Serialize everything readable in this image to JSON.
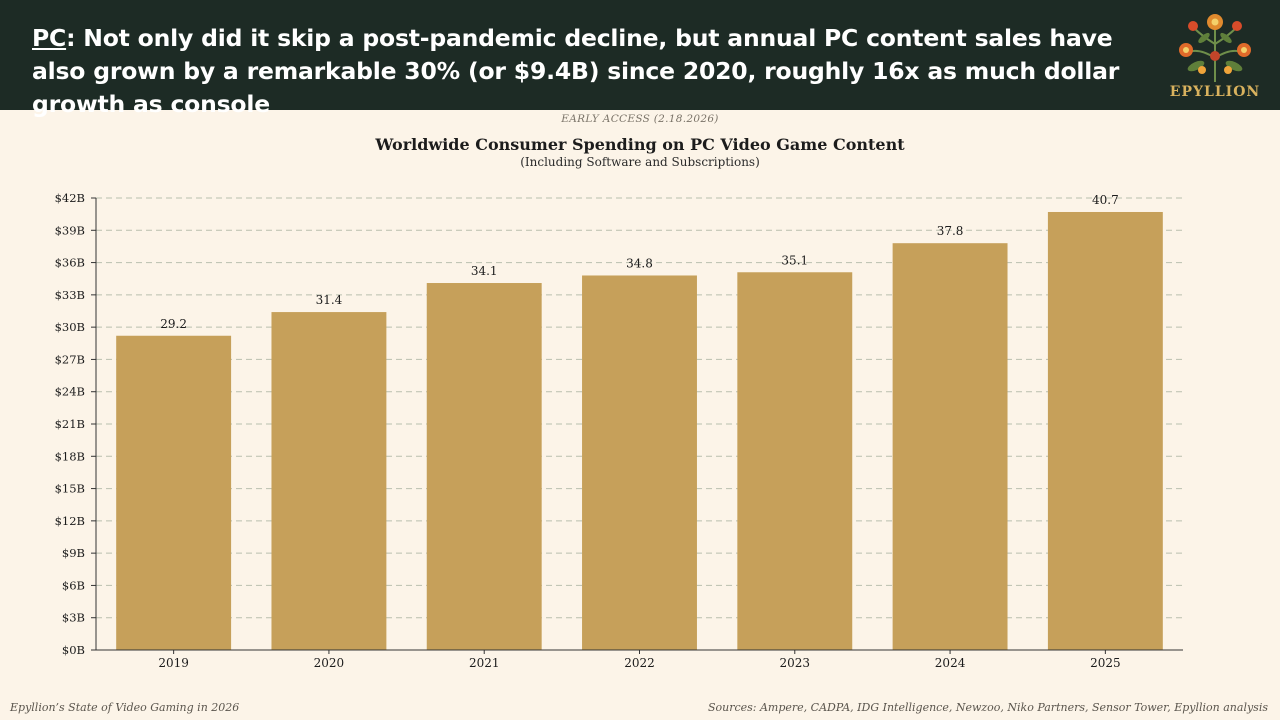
{
  "header": {
    "tag": "PC",
    "headline": ": Not only did it skip a post-pandemic decline, but annual PC content sales have also grown by a remarkable 30% (or $9.4B) since 2020, roughly 16x as much dollar growth as console",
    "logo_text": "EPYLLION"
  },
  "early_access": "EARLY ACCESS (2.18.2026)",
  "footer": {
    "left": "Epyllion’s State of Video Gaming in 2026",
    "right": "Sources: Ampere, CADPA, IDG Intelligence, Newzoo, Niko Partners, Sensor Tower, Epyllion analysis"
  },
  "colors": {
    "header_bg": "#1d2b25",
    "page_bg": "#fcf4e8",
    "bar": "#c6a05a",
    "logo_gold": "#d9b25e"
  },
  "chart_data": {
    "type": "bar",
    "title": "Worldwide Consumer Spending on PC Video Game Content",
    "subtitle": "(Including Software and Subscriptions)",
    "categories": [
      "2019",
      "2020",
      "2021",
      "2022",
      "2023",
      "2024",
      "2025"
    ],
    "values": [
      29.2,
      31.4,
      34.1,
      34.8,
      35.1,
      37.8,
      40.7
    ],
    "data_labels": [
      "29.2",
      "31.4",
      "34.1",
      "34.8",
      "35.1",
      "37.8",
      "40.7"
    ],
    "ylim": [
      0,
      42
    ],
    "yticks": [
      0,
      3,
      6,
      9,
      12,
      15,
      18,
      21,
      24,
      27,
      30,
      33,
      36,
      39,
      42
    ],
    "ytick_labels": [
      "$0B",
      "$3B",
      "$6B",
      "$9B",
      "$12B",
      "$15B",
      "$18B",
      "$21B",
      "$24B",
      "$27B",
      "$30B",
      "$33B",
      "$36B",
      "$39B",
      "$42B"
    ],
    "grid": true,
    "legend": "none"
  }
}
